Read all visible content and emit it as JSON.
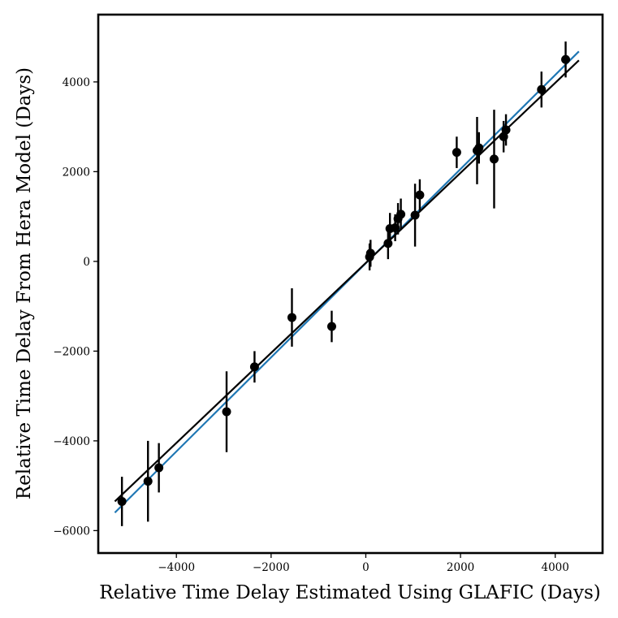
{
  "chart_data": {
    "type": "scatter",
    "title": "",
    "xlabel": "Relative Time Delay Estimated Using GLAFIC (Days)",
    "ylabel": "Relative Time Delay From Hera Model (Days)",
    "xlim": [
      -5650,
      5000
    ],
    "ylim": [
      -6500,
      5500
    ],
    "x_ticks": [
      -4000,
      -2000,
      0,
      2000,
      4000
    ],
    "y_ticks": [
      -6000,
      -4000,
      -2000,
      0,
      2000,
      4000
    ],
    "x_tick_labels": [
      "−4000",
      "−2000",
      "0",
      "2000",
      "4000"
    ],
    "y_tick_labels": [
      "−6000",
      "−4000",
      "−2000",
      "0",
      "2000",
      "4000"
    ],
    "grid": false,
    "legend": null,
    "series": [
      {
        "name": "measurements",
        "color": "#000000",
        "x": [
          -5150,
          -4600,
          -4370,
          -2940,
          -2350,
          -1560,
          -720,
          80,
          100,
          470,
          510,
          620,
          680,
          740,
          1040,
          1140,
          1920,
          2350,
          2390,
          2710,
          2910,
          2960,
          3710,
          4220
        ],
        "y": [
          -5350,
          -4900,
          -4600,
          -3350,
          -2350,
          -1250,
          -1450,
          100,
          180,
          400,
          730,
          750,
          950,
          1050,
          1030,
          1480,
          2430,
          2470,
          2530,
          2280,
          2780,
          2930,
          3830,
          4500
        ],
        "yerr": [
          550,
          900,
          550,
          900,
          350,
          650,
          350,
          300,
          300,
          350,
          350,
          300,
          350,
          350,
          700,
          350,
          350,
          750,
          350,
          1100,
          350,
          350,
          400,
          400
        ]
      }
    ],
    "fit_lines": [
      {
        "name": "blue-fit-line",
        "color": "#1f77b4",
        "x": [
          -5300,
          4500
        ],
        "y": [
          -5600,
          4680
        ]
      },
      {
        "name": "black-fit-line",
        "color": "#000000",
        "x": [
          -5300,
          4500
        ],
        "y": [
          -5350,
          4480
        ]
      }
    ]
  }
}
